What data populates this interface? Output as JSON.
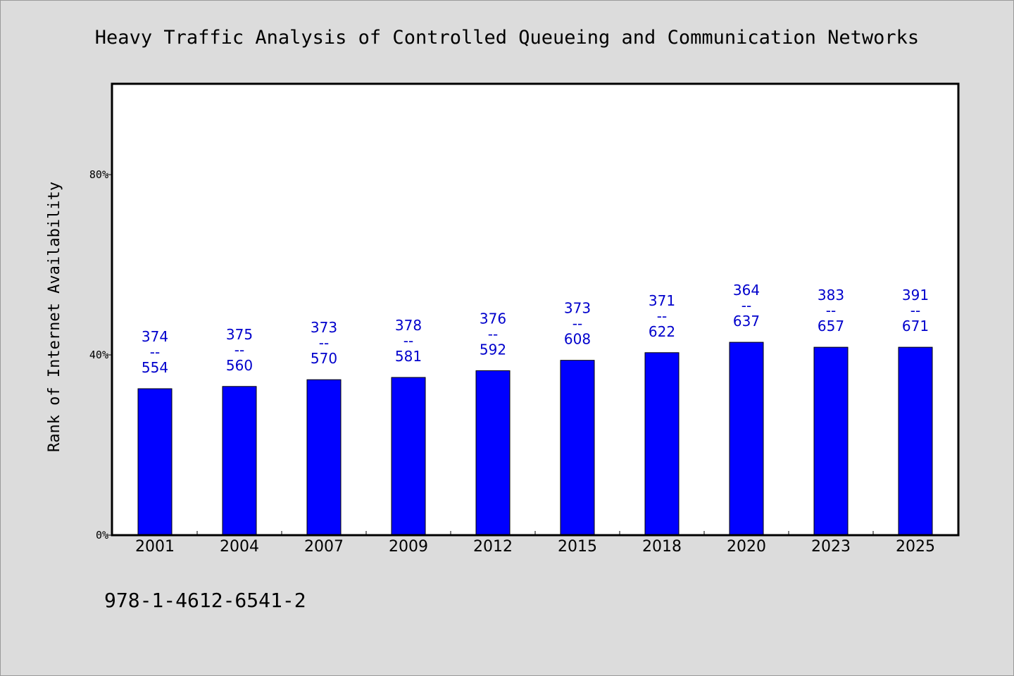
{
  "chart_data": {
    "type": "bar",
    "title": "Heavy Traffic Analysis of Controlled Queueing and Communication Networks",
    "xlabel": "",
    "ylabel": "Rank of Internet Availability",
    "ylim": [
      0,
      100
    ],
    "yticks": [
      0,
      40,
      80
    ],
    "ytick_labels": [
      "0%",
      "40%",
      "80%"
    ],
    "categories": [
      "2001",
      "2004",
      "2007",
      "2009",
      "2012",
      "2015",
      "2018",
      "2020",
      "2023",
      "2025"
    ],
    "values": [
      32.5,
      33,
      34.5,
      35,
      36.5,
      38.8,
      40.5,
      42.8,
      41.7,
      41.7
    ],
    "labels_top": [
      "374",
      "375",
      "373",
      "378",
      "376",
      "373",
      "371",
      "364",
      "383",
      "391"
    ],
    "labels_sep": "--",
    "labels_bottom": [
      "554",
      "560",
      "570",
      "581",
      "592",
      "608",
      "622",
      "637",
      "657",
      "671"
    ],
    "bar_color": "#0000ff",
    "label_color": "#0000cc",
    "grid": false,
    "legend": "none"
  },
  "footer": {
    "isbn": "978-1-4612-6541-2"
  }
}
